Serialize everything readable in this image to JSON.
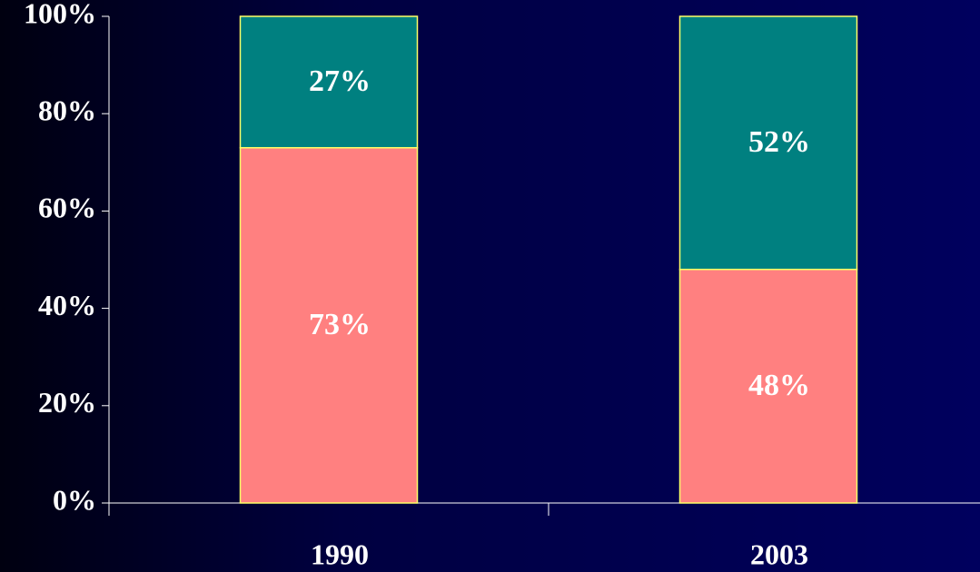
{
  "chart_data": {
    "type": "stacked_bar",
    "categories": [
      "1990",
      "2003"
    ],
    "category_colors": [
      "#ffffff",
      "#ffff00"
    ],
    "series": [
      {
        "color": "#ff8080",
        "values": [
          73,
          48
        ],
        "value_labels": [
          "73%",
          "48%"
        ]
      },
      {
        "color": "#008080",
        "values": [
          27,
          52
        ],
        "value_labels": [
          "27%",
          "52%"
        ]
      }
    ],
    "bar_edge_color": "#ffff66",
    "ylim": [
      0,
      100
    ],
    "yticks": [
      {
        "value": 0,
        "label": "0%"
      },
      {
        "value": 20,
        "label": "20%"
      },
      {
        "value": 40,
        "label": "40%"
      },
      {
        "value": 60,
        "label": "60%"
      },
      {
        "value": 80,
        "label": "80%"
      },
      {
        "value": 100,
        "label": "100%"
      }
    ],
    "grid": false
  }
}
